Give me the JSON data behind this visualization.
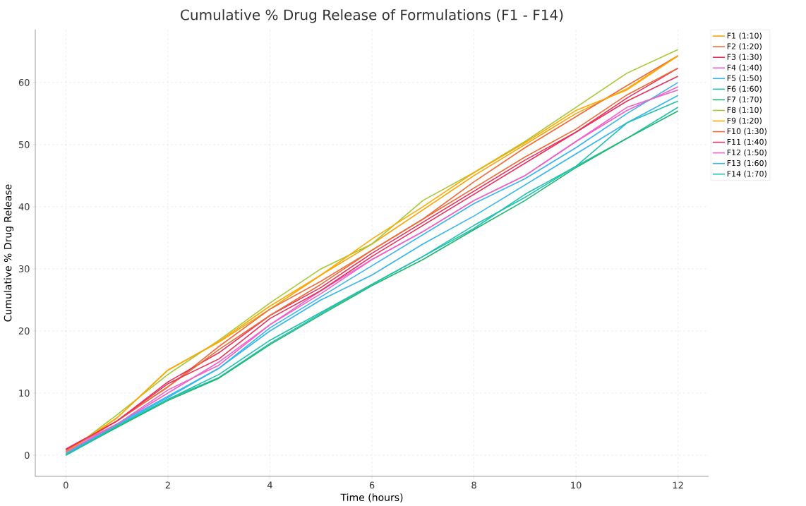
{
  "chart_data": {
    "type": "line",
    "title": "Cumulative % Drug Release of Formulations (F1 - F14)",
    "xlabel": "Time (hours)",
    "ylabel": "Cumulative % Drug Release",
    "x": [
      0,
      1,
      2,
      3,
      4,
      5,
      6,
      7,
      8,
      9,
      10,
      11,
      12
    ],
    "xlim": [
      -0.6,
      12.6
    ],
    "ylim": [
      -3.4,
      68.5
    ],
    "xticks": [
      0,
      2,
      4,
      6,
      8,
      10,
      12
    ],
    "yticks": [
      0,
      10,
      20,
      30,
      40,
      50,
      60
    ],
    "grid": true,
    "legend": "top right",
    "marker": "none",
    "line_style": "solid",
    "series": [
      {
        "name": "F1 (1:10)",
        "color": "#f5a300",
        "values": [
          0.5,
          6,
          13.7,
          18.2,
          23.5,
          29,
          34,
          39.5,
          45,
          50,
          55,
          59,
          64.3
        ]
      },
      {
        "name": "F2 (1:20)",
        "color": "#f06a35",
        "values": [
          0.6,
          5.5,
          11,
          17.5,
          23.5,
          28,
          33,
          38,
          44,
          49.5,
          54.5,
          59.5,
          64.3
        ]
      },
      {
        "name": "F3 (1:30)",
        "color": "#e8305a",
        "values": [
          1,
          5.5,
          11.8,
          16.5,
          22.5,
          27,
          32.5,
          37.5,
          42.5,
          47.5,
          52,
          57.5,
          62.3
        ]
      },
      {
        "name": "F4 (1:40)",
        "color": "#f060c8",
        "values": [
          0.9,
          5,
          10,
          15,
          21,
          26.5,
          31.5,
          36,
          41,
          45,
          50.5,
          55.5,
          59.3
        ]
      },
      {
        "name": "F5 (1:50)",
        "color": "#35b5f0",
        "values": [
          0.3,
          5,
          9.5,
          14,
          20.5,
          25.5,
          30.5,
          35.5,
          40.5,
          44.5,
          49.5,
          55,
          60
        ]
      },
      {
        "name": "F6 (1:60)",
        "color": "#1fc0b0",
        "values": [
          0.2,
          4.5,
          9,
          12.5,
          18,
          22.8,
          27.5,
          32,
          36.5,
          42,
          46.5,
          51,
          56
        ]
      },
      {
        "name": "F7 (1:70)",
        "color": "#1db868",
        "values": [
          0,
          4.5,
          8.8,
          12.4,
          17.8,
          22.6,
          27.3,
          31.5,
          36.3,
          41,
          46.3,
          51,
          55.4
        ]
      },
      {
        "name": "F8 (1:10)",
        "color": "#a5c832",
        "values": [
          0.3,
          6.5,
          13,
          18.5,
          24.5,
          30,
          34,
          41,
          45.5,
          50.5,
          56,
          61.5,
          65.3
        ]
      },
      {
        "name": "F9 (1:20)",
        "color": "#ffa800",
        "values": [
          0.5,
          6,
          13.7,
          18.3,
          24,
          29,
          34.8,
          40,
          45.5,
          50.3,
          55.5,
          58.8,
          64.3
        ]
      },
      {
        "name": "F10 (1:30)",
        "color": "#f06a35",
        "values": [
          0.8,
          5.5,
          11,
          17,
          22.5,
          27.5,
          33,
          38,
          43,
          48,
          52.5,
          58,
          62.3
        ]
      },
      {
        "name": "F11 (1:40)",
        "color": "#e8305a",
        "values": [
          0.9,
          5.5,
          11.5,
          15.5,
          22,
          26.5,
          32,
          37,
          42,
          47,
          52,
          57,
          61
        ]
      },
      {
        "name": "F12 (1:50)",
        "color": "#f060c8",
        "values": [
          0.5,
          5,
          10.5,
          14.5,
          21,
          26,
          31.5,
          36,
          41,
          45,
          50.5,
          56,
          58.8
        ]
      },
      {
        "name": "F13 (1:60)",
        "color": "#35b5f0",
        "values": [
          0.2,
          4.8,
          9.3,
          14,
          20,
          25,
          29,
          34,
          38.5,
          43.5,
          48.5,
          53.5,
          57.9
        ]
      },
      {
        "name": "F14 (1:70)",
        "color": "#1fc0b0",
        "values": [
          0,
          4.7,
          9,
          13,
          18.5,
          23,
          27.5,
          32,
          37,
          41.5,
          46.5,
          53.5,
          57
        ]
      }
    ]
  }
}
